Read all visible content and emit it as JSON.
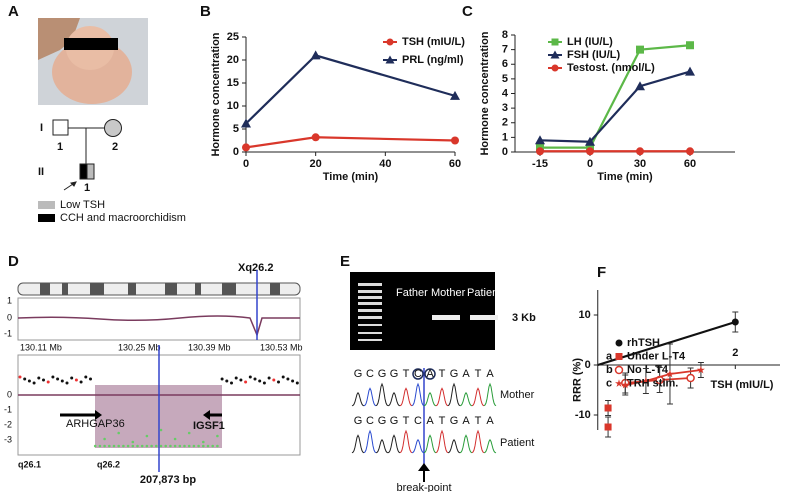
{
  "panel_a": {
    "label": "A",
    "generations": [
      "I",
      "II"
    ],
    "individuals": [
      "1",
      "2",
      "1"
    ],
    "legend": [
      "Low TSH",
      "CCH and macroorchidism"
    ]
  },
  "chart_data": [
    {
      "type": "line",
      "panel": "B",
      "x": [
        0,
        20,
        60
      ],
      "xlim": [
        0,
        60
      ],
      "xticks": [
        0,
        20,
        40,
        60
      ],
      "ylim": [
        0,
        25
      ],
      "yticks": [
        0,
        5,
        10,
        15,
        20,
        25
      ],
      "xlabel": "Time (min)",
      "ylabel": "Hormone concentration",
      "series": [
        {
          "name": "TSH (mIU/L)",
          "color": "#d9372b",
          "marker": "circle",
          "values": [
            1,
            3.2,
            2.5
          ]
        },
        {
          "name": "PRL (ng/ml)",
          "color": "#1f2d5a",
          "marker": "triangle",
          "values": [
            6.2,
            21,
            12.2
          ]
        }
      ]
    },
    {
      "type": "line",
      "panel": "C",
      "categories": [
        "-15",
        "0",
        "30",
        "60"
      ],
      "ylim": [
        0,
        8
      ],
      "yticks": [
        0,
        1,
        2,
        3,
        4,
        5,
        6,
        7,
        8
      ],
      "xlabel": "Time (min)",
      "ylabel": "Hormone concentration",
      "series": [
        {
          "name": "LH (IU/L)",
          "color": "#5cb848",
          "marker": "square",
          "values": [
            0.3,
            0.3,
            7,
            7.3
          ]
        },
        {
          "name": "FSH (IU/L)",
          "color": "#1f2d5a",
          "marker": "triangle",
          "values": [
            0.8,
            0.7,
            4.5,
            5.5
          ]
        },
        {
          "name": "Testost. (nmol/L)",
          "color": "#d9372b",
          "marker": "circle",
          "values": [
            0.05,
            0.05,
            0.05,
            0.05
          ]
        }
      ]
    },
    {
      "type": "scatter",
      "panel": "F",
      "xlim": [
        -0.2,
        2.65
      ],
      "xticks": [
        2
      ],
      "ylim": [
        -13,
        15
      ],
      "yticks": [
        -10,
        0,
        10
      ],
      "xlabel": "TSH (mIU/L)",
      "ylabel": "RRR (%)",
      "series": [
        {
          "name": "rhTSH",
          "color": "#111111",
          "marker": "circle",
          "x": [
            0,
            2
          ],
          "values": [
            0,
            8.6
          ],
          "errors": [
            0,
            2
          ]
        },
        {
          "name": "Under L-T4",
          "tag": "a",
          "color": "#d9372b",
          "marker": "square",
          "x": [
            0.15,
            0.15
          ],
          "values": [
            -8.6,
            -12.4
          ],
          "errors": [
            1.5,
            2
          ]
        },
        {
          "name": "No L-T4",
          "tag": "b",
          "color": "#d9372b",
          "marker": "open-circle",
          "x": [
            0.4,
            0.9,
            1.35
          ],
          "values": [
            -3.6,
            -3,
            -2.6
          ],
          "errors": [
            2,
            2.5,
            2
          ]
        },
        {
          "name": "TRH stim.",
          "tag": "c",
          "color": "#d9372b",
          "marker": "star",
          "x": [
            0.4,
            0.7,
            1.05,
            1.5
          ],
          "values": [
            -4,
            -3.2,
            -1.8,
            -1
          ],
          "errors": [
            2,
            2.5,
            6,
            1.5
          ]
        }
      ]
    }
  ],
  "panel_d": {
    "label": "D",
    "locus": "Xq26.2",
    "top_yticks": [
      "1",
      "0",
      "-1"
    ],
    "positions": [
      "130.11 Mb",
      "130.25 Mb",
      "130.39 Mb",
      "130.53 Mb"
    ],
    "bottom_yticks": [
      "0",
      "-1",
      "-2",
      "-3"
    ],
    "genes": [
      "ARHGAP36",
      "IGSF1"
    ],
    "bands": [
      "q26.1",
      "q26.2"
    ],
    "deletion": "207,873 bp"
  },
  "panel_e": {
    "label": "E",
    "lanes": [
      "Father",
      "Mother",
      "Patient"
    ],
    "size": "3 Kb",
    "sequence_mother": [
      "G",
      "C",
      "G",
      "G",
      "T",
      "C",
      "A",
      "T",
      "G",
      "A",
      "T",
      "A"
    ],
    "sequence_patient": [
      "G",
      "C",
      "G",
      "G",
      "T",
      "C",
      "A",
      "T",
      "G",
      "A",
      "T",
      "A"
    ],
    "traces": [
      "Mother",
      "Patient"
    ],
    "marker": "break-point"
  }
}
